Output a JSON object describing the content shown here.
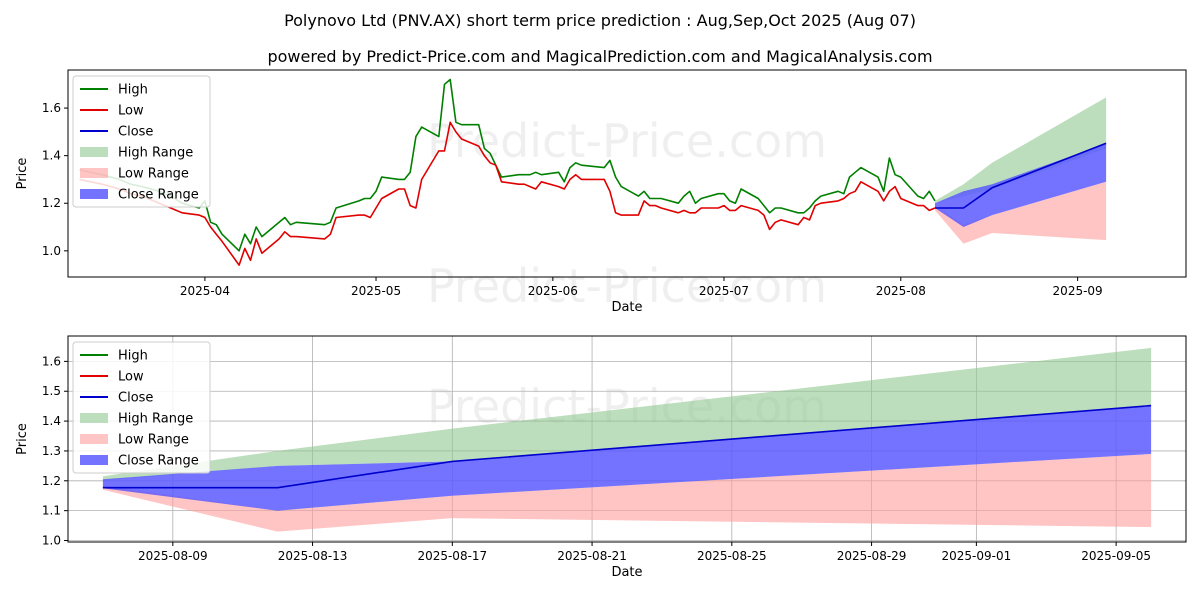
{
  "title": "Polynovo Ltd (PNV.AX) short term price prediction : Aug,Sep,Oct 2025 (Aug 07)",
  "subtitle": "powered by Predict-Price.com and MagicalPrediction.com and MagicalAnalysis.com",
  "watermark": "Predict-Price.com",
  "colors": {
    "high": "#008000",
    "low": "#e00000",
    "close": "#0000cc",
    "high_range": "#90c890",
    "low_range": "#ff9c9c",
    "close_range": "#5a5aff"
  },
  "chart_data": [
    {
      "type": "line",
      "panel": "top",
      "xlabel": "Date",
      "ylabel": "Price",
      "xlim": [
        "2025-03-08",
        "2025-09-20"
      ],
      "ylim": [
        0.89,
        1.76
      ],
      "grid": false,
      "legend_position": "top-left",
      "legend": [
        "High",
        "Low",
        "Close",
        "High Range",
        "Low Range",
        "Close Range"
      ],
      "x_ticks": [
        "2025-04",
        "2025-05",
        "2025-06",
        "2025-07",
        "2025-08",
        "2025-09"
      ],
      "x_tick_dates": [
        "2025-04-01",
        "2025-05-01",
        "2025-06-01",
        "2025-07-01",
        "2025-08-01",
        "2025-09-01"
      ],
      "y_ticks": [
        "1.0",
        "1.2",
        "1.4",
        "1.6"
      ],
      "y_tick_values": [
        1.0,
        1.2,
        1.4,
        1.6
      ],
      "series": [
        {
          "name": "High",
          "x": [
            "2025-03-10",
            "2025-03-12",
            "2025-03-14",
            "2025-03-17",
            "2025-03-19",
            "2025-03-21",
            "2025-03-24",
            "2025-03-26",
            "2025-03-28",
            "2025-03-31",
            "2025-04-01",
            "2025-04-02",
            "2025-04-03",
            "2025-04-04",
            "2025-04-07",
            "2025-04-08",
            "2025-04-09",
            "2025-04-10",
            "2025-04-11",
            "2025-04-14",
            "2025-04-15",
            "2025-04-16",
            "2025-04-17",
            "2025-04-22",
            "2025-04-23",
            "2025-04-24",
            "2025-04-28",
            "2025-04-29",
            "2025-04-30",
            "2025-05-01",
            "2025-05-02",
            "2025-05-05",
            "2025-05-06",
            "2025-05-07",
            "2025-05-08",
            "2025-05-09",
            "2025-05-12",
            "2025-05-13",
            "2025-05-14",
            "2025-05-15",
            "2025-05-16",
            "2025-05-19",
            "2025-05-20",
            "2025-05-21",
            "2025-05-22",
            "2025-05-23",
            "2025-05-26",
            "2025-05-27",
            "2025-05-28",
            "2025-05-29",
            "2025-05-30",
            "2025-06-02",
            "2025-06-03",
            "2025-06-04",
            "2025-06-05",
            "2025-06-06",
            "2025-06-10",
            "2025-06-11",
            "2025-06-12",
            "2025-06-13",
            "2025-06-16",
            "2025-06-17",
            "2025-06-18",
            "2025-06-19",
            "2025-06-20",
            "2025-06-23",
            "2025-06-24",
            "2025-06-25",
            "2025-06-26",
            "2025-06-27",
            "2025-06-30",
            "2025-07-01",
            "2025-07-02",
            "2025-07-03",
            "2025-07-04",
            "2025-07-07",
            "2025-07-08",
            "2025-07-09",
            "2025-07-10",
            "2025-07-11",
            "2025-07-14",
            "2025-07-15",
            "2025-07-16",
            "2025-07-17",
            "2025-07-18",
            "2025-07-21",
            "2025-07-22",
            "2025-07-23",
            "2025-07-24",
            "2025-07-25",
            "2025-07-28",
            "2025-07-29",
            "2025-07-30",
            "2025-07-31",
            "2025-08-01",
            "2025-08-04",
            "2025-08-05",
            "2025-08-06",
            "2025-08-07"
          ],
          "values": [
            1.34,
            1.33,
            1.32,
            1.3,
            1.28,
            1.27,
            1.25,
            1.23,
            1.2,
            1.18,
            1.21,
            1.12,
            1.11,
            1.07,
            1.0,
            1.07,
            1.03,
            1.1,
            1.06,
            1.12,
            1.14,
            1.11,
            1.12,
            1.11,
            1.12,
            1.18,
            1.21,
            1.22,
            1.22,
            1.25,
            1.31,
            1.3,
            1.3,
            1.33,
            1.48,
            1.52,
            1.48,
            1.7,
            1.72,
            1.54,
            1.53,
            1.53,
            1.43,
            1.41,
            1.36,
            1.31,
            1.32,
            1.32,
            1.32,
            1.33,
            1.32,
            1.33,
            1.29,
            1.35,
            1.37,
            1.36,
            1.35,
            1.38,
            1.31,
            1.27,
            1.23,
            1.25,
            1.22,
            1.22,
            1.22,
            1.2,
            1.23,
            1.25,
            1.2,
            1.22,
            1.24,
            1.24,
            1.21,
            1.2,
            1.26,
            1.22,
            1.19,
            1.16,
            1.18,
            1.18,
            1.16,
            1.16,
            1.18,
            1.21,
            1.23,
            1.25,
            1.24,
            1.31,
            1.33,
            1.35,
            1.31,
            1.25,
            1.39,
            1.32,
            1.31,
            1.23,
            1.22,
            1.25,
            1.21
          ]
        },
        {
          "name": "Low",
          "x": [
            "2025-03-10",
            "2025-03-12",
            "2025-03-14",
            "2025-03-17",
            "2025-03-19",
            "2025-03-21",
            "2025-03-24",
            "2025-03-26",
            "2025-03-28",
            "2025-03-31",
            "2025-04-01",
            "2025-04-02",
            "2025-04-03",
            "2025-04-04",
            "2025-04-07",
            "2025-04-08",
            "2025-04-09",
            "2025-04-10",
            "2025-04-11",
            "2025-04-14",
            "2025-04-15",
            "2025-04-16",
            "2025-04-17",
            "2025-04-22",
            "2025-04-23",
            "2025-04-24",
            "2025-04-28",
            "2025-04-29",
            "2025-04-30",
            "2025-05-01",
            "2025-05-02",
            "2025-05-05",
            "2025-05-06",
            "2025-05-07",
            "2025-05-08",
            "2025-05-09",
            "2025-05-12",
            "2025-05-13",
            "2025-05-14",
            "2025-05-15",
            "2025-05-16",
            "2025-05-19",
            "2025-05-20",
            "2025-05-21",
            "2025-05-22",
            "2025-05-23",
            "2025-05-26",
            "2025-05-27",
            "2025-05-28",
            "2025-05-29",
            "2025-05-30",
            "2025-06-02",
            "2025-06-03",
            "2025-06-04",
            "2025-06-05",
            "2025-06-06",
            "2025-06-10",
            "2025-06-11",
            "2025-06-12",
            "2025-06-13",
            "2025-06-16",
            "2025-06-17",
            "2025-06-18",
            "2025-06-19",
            "2025-06-20",
            "2025-06-23",
            "2025-06-24",
            "2025-06-25",
            "2025-06-26",
            "2025-06-27",
            "2025-06-30",
            "2025-07-01",
            "2025-07-02",
            "2025-07-03",
            "2025-07-04",
            "2025-07-07",
            "2025-07-08",
            "2025-07-09",
            "2025-07-10",
            "2025-07-11",
            "2025-07-14",
            "2025-07-15",
            "2025-07-16",
            "2025-07-17",
            "2025-07-18",
            "2025-07-21",
            "2025-07-22",
            "2025-07-23",
            "2025-07-24",
            "2025-07-25",
            "2025-07-28",
            "2025-07-29",
            "2025-07-30",
            "2025-07-31",
            "2025-08-01",
            "2025-08-04",
            "2025-08-05",
            "2025-08-06",
            "2025-08-07"
          ],
          "values": [
            1.3,
            1.29,
            1.28,
            1.26,
            1.24,
            1.23,
            1.2,
            1.18,
            1.16,
            1.15,
            1.14,
            1.1,
            1.07,
            1.04,
            0.94,
            1.01,
            0.96,
            1.05,
            0.99,
            1.05,
            1.08,
            1.06,
            1.06,
            1.05,
            1.07,
            1.14,
            1.15,
            1.15,
            1.14,
            1.18,
            1.22,
            1.26,
            1.26,
            1.19,
            1.18,
            1.3,
            1.42,
            1.42,
            1.54,
            1.5,
            1.47,
            1.44,
            1.4,
            1.37,
            1.36,
            1.29,
            1.28,
            1.28,
            1.27,
            1.26,
            1.29,
            1.27,
            1.26,
            1.3,
            1.32,
            1.3,
            1.3,
            1.25,
            1.16,
            1.15,
            1.15,
            1.21,
            1.19,
            1.19,
            1.18,
            1.16,
            1.17,
            1.16,
            1.16,
            1.18,
            1.18,
            1.19,
            1.17,
            1.17,
            1.19,
            1.17,
            1.15,
            1.09,
            1.12,
            1.13,
            1.11,
            1.14,
            1.13,
            1.19,
            1.2,
            1.21,
            1.22,
            1.24,
            1.25,
            1.29,
            1.25,
            1.21,
            1.25,
            1.27,
            1.22,
            1.19,
            1.19,
            1.17,
            1.18
          ]
        },
        {
          "name": "High Range",
          "x": [
            "2025-08-07",
            "2025-08-12",
            "2025-08-17",
            "2025-09-06"
          ],
          "upper": [
            1.21,
            1.28,
            1.37,
            1.645
          ],
          "lower": [
            1.2,
            1.23,
            1.26,
            1.43
          ]
        },
        {
          "name": "Low Range",
          "x": [
            "2025-08-07",
            "2025-08-12",
            "2025-08-17",
            "2025-09-06"
          ],
          "upper": [
            1.19,
            1.11,
            1.15,
            1.29
          ],
          "lower": [
            1.17,
            1.03,
            1.075,
            1.045
          ]
        },
        {
          "name": "Close Range",
          "x": [
            "2025-08-07",
            "2025-08-12",
            "2025-08-17",
            "2025-09-06"
          ],
          "upper": [
            1.2,
            1.25,
            1.28,
            1.45
          ],
          "lower": [
            1.18,
            1.1,
            1.15,
            1.29
          ]
        },
        {
          "name": "Close",
          "x": [
            "2025-08-07",
            "2025-08-12",
            "2025-08-17",
            "2025-09-06"
          ],
          "values": [
            1.18,
            1.18,
            1.265,
            1.452
          ]
        }
      ]
    },
    {
      "type": "line",
      "panel": "bottom",
      "xlabel": "Date",
      "ylabel": "Price",
      "xlim": [
        "2025-08-06",
        "2025-09-07"
      ],
      "ylim": [
        0.995,
        1.685
      ],
      "grid": true,
      "legend_position": "top-left",
      "legend": [
        "High",
        "Low",
        "Close",
        "High Range",
        "Low Range",
        "Close Range"
      ],
      "x_ticks": [
        "2025-08-09",
        "2025-08-13",
        "2025-08-17",
        "2025-08-21",
        "2025-08-25",
        "2025-08-29",
        "2025-09-01",
        "2025-09-05"
      ],
      "x_tick_dates": [
        "2025-08-09",
        "2025-08-13",
        "2025-08-17",
        "2025-08-21",
        "2025-08-25",
        "2025-08-29",
        "2025-09-01",
        "2025-09-05"
      ],
      "y_ticks": [
        "1.0",
        "1.1",
        "1.2",
        "1.3",
        "1.4",
        "1.5",
        "1.6"
      ],
      "y_tick_values": [
        1.0,
        1.1,
        1.2,
        1.3,
        1.4,
        1.5,
        1.6
      ],
      "series": [
        {
          "name": "High Range",
          "x": [
            "2025-08-07",
            "2025-08-12",
            "2025-08-17",
            "2025-09-06"
          ],
          "upper": [
            1.215,
            1.3,
            1.375,
            1.645
          ],
          "lower": [
            1.2,
            1.25,
            1.265,
            1.45
          ]
        },
        {
          "name": "Low Range",
          "x": [
            "2025-08-07",
            "2025-08-12",
            "2025-08-17",
            "2025-09-06"
          ],
          "upper": [
            1.185,
            1.1,
            1.15,
            1.29
          ],
          "lower": [
            1.17,
            1.03,
            1.075,
            1.045
          ]
        },
        {
          "name": "Close Range",
          "x": [
            "2025-08-07",
            "2025-08-12",
            "2025-08-17",
            "2025-09-06"
          ],
          "upper": [
            1.205,
            1.25,
            1.265,
            1.45
          ],
          "lower": [
            1.175,
            1.1,
            1.15,
            1.29
          ]
        },
        {
          "name": "Close",
          "x": [
            "2025-08-07",
            "2025-08-12",
            "2025-08-17",
            "2025-09-06"
          ],
          "values": [
            1.177,
            1.177,
            1.265,
            1.452
          ]
        }
      ]
    }
  ]
}
